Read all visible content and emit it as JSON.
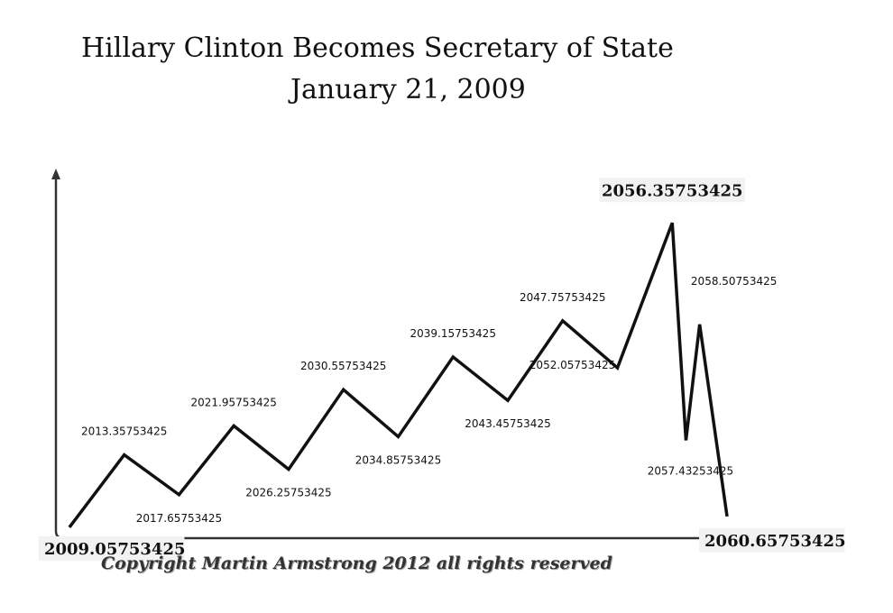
{
  "title": "Hillary Clinton Becomes Secretary of State",
  "subtitle": "January 21, 2009",
  "copyright": "Copyright Martin Armstrong 2012 all rights reserved",
  "colors": {
    "line": "#111111",
    "axis": "#333333",
    "label_bg": "#f2f2f2"
  },
  "chart_data": {
    "type": "line",
    "title": "Hillary Clinton Becomes Secretary of State",
    "subtitle": "January 21, 2009",
    "xlabel": "",
    "ylabel": "",
    "grid": false,
    "legend": "none",
    "xlim": [
      2008.0,
      2062.0
    ],
    "ylim": [
      0,
      10
    ],
    "x": [
      2009.05753425,
      2013.35753425,
      2017.65753425,
      2021.95753425,
      2026.25753425,
      2030.55753425,
      2034.85753425,
      2039.15753425,
      2043.45753425,
      2047.75753425,
      2052.05753425,
      2056.35753425,
      2057.43253425,
      2058.50753425,
      2060.65753425
    ],
    "y": [
      0.3,
      2.3,
      1.2,
      3.1,
      1.9,
      4.1,
      2.8,
      5.0,
      3.8,
      6.0,
      4.7,
      8.7,
      2.7,
      5.9,
      0.6
    ],
    "labels": [
      "2009.05753425",
      "2013.35753425",
      "2017.65753425",
      "2021.95753425",
      "2026.25753425",
      "2030.55753425",
      "2034.85753425",
      "2039.15753425",
      "2043.45753425",
      "2047.75753425",
      "2052.05753425",
      "2056.35753425",
      "2057.43253425",
      "2058.50753425",
      "2060.65753425"
    ]
  }
}
